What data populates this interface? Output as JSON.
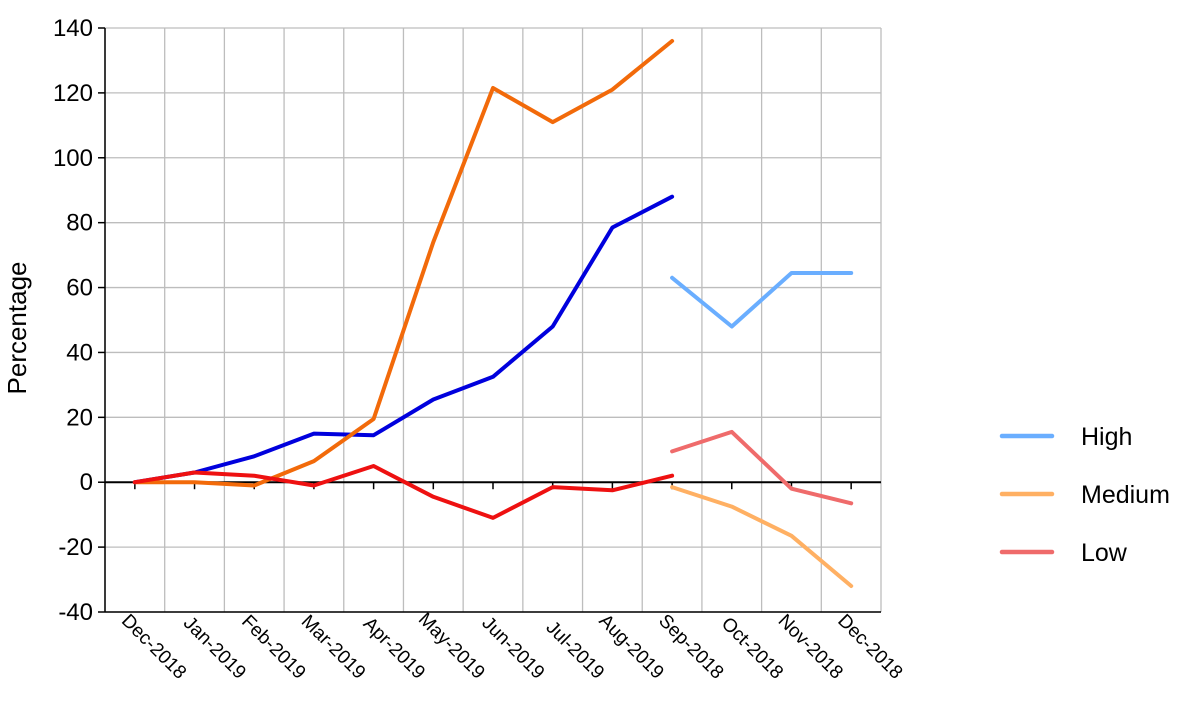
{
  "chart_data": {
    "type": "line",
    "ylabel": "Percentage",
    "ylim": [
      -40,
      140
    ],
    "yticks": [
      -40,
      -20,
      0,
      20,
      40,
      60,
      80,
      100,
      120,
      140
    ],
    "categories": [
      "Dec-2018",
      "Jan-2019",
      "Feb-2019",
      "Mar-2019",
      "Apr-2019",
      "May-2019",
      "Jun-2019",
      "Jul-2019",
      "Aug-2019",
      "Sep-2018",
      "Oct-2018",
      "Nov-2018",
      "Dec-2018"
    ],
    "grid": true,
    "legend_position": "right",
    "series": [
      {
        "values": [
          0,
          3,
          8,
          15,
          14.5,
          25.5,
          32.5,
          48,
          78.5,
          88,
          null,
          null,
          null
        ],
        "color": "#0000dd"
      },
      {
        "values": [
          0,
          0,
          -1,
          6.5,
          19.5,
          74,
          121.5,
          111,
          121,
          136,
          null,
          null,
          null
        ],
        "color": "#f26a0a"
      },
      {
        "values": [
          0,
          3,
          2,
          -1,
          5,
          -4.5,
          -11,
          -1.5,
          -2.5,
          2,
          null,
          null,
          null
        ],
        "color": "#ee1111"
      },
      {
        "name": "High",
        "values": [
          null,
          null,
          null,
          null,
          null,
          null,
          null,
          null,
          null,
          63,
          48,
          64.5,
          64.5
        ],
        "color": "#6aaeff"
      },
      {
        "name": "Medium",
        "values": [
          null,
          null,
          null,
          null,
          null,
          null,
          null,
          null,
          null,
          -1.5,
          -7.5,
          -16.5,
          -32
        ],
        "color": "#ffb063"
      },
      {
        "name": "Low",
        "values": [
          null,
          null,
          null,
          null,
          null,
          null,
          null,
          null,
          null,
          9.5,
          15.5,
          -2,
          -6.5
        ],
        "color": "#ef6b6b"
      }
    ]
  }
}
